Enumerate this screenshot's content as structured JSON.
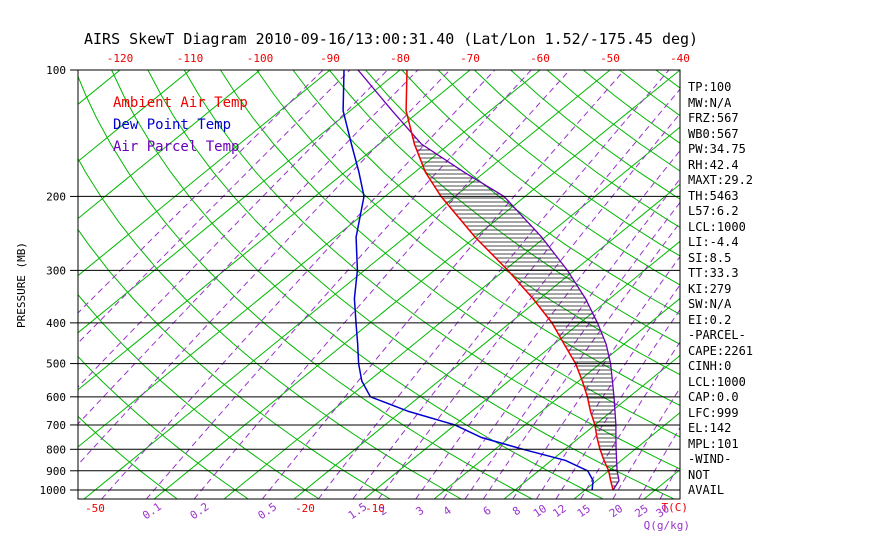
{
  "title": "AIRS SkewT Diagram 2010-09-16/13:00:31.40 (Lat/Lon 1.52/-175.45 deg)",
  "legend": {
    "ambient_label": "Ambient Air Temp",
    "dew_label": "Dew Point Temp",
    "parcel_label": "Air Parcel Temp"
  },
  "colors": {
    "ambient": "#ee0000",
    "dew_point": "#0000cc",
    "parcel": "#6a00b8",
    "grid_green": "#00b800",
    "mixing_ratio": "#9933cc",
    "tick_red": "#ee0000",
    "axis_black": "#000000",
    "hatch": "#111111"
  },
  "side_panel": {
    "lines": [
      "TP:100",
      "MW:N/A",
      "FRZ:567",
      "WB0:567",
      "PW:34.75",
      "RH:42.4",
      "MAXT:29.2",
      "TH:5463",
      "L57:6.2",
      "LCL:1000",
      "LI:-4.4",
      "SI:8.5",
      "TT:33.3",
      "KI:279",
      "SW:N/A",
      "EI:0.2",
      "-PARCEL-",
      "CAPE:2261",
      "CINH:0",
      "LCL:1000",
      "CAP:0.0",
      "LFC:999",
      "EL:142",
      "MPL:101",
      "-WIND-",
      "NOT",
      "AVAIL"
    ]
  },
  "chart_data": {
    "type": "line",
    "diagram": "skew-t-log-p",
    "title": "AIRS SkewT Diagram 2010-09-16/13:00:31.40 (Lat/Lon 1.52/-175.45 deg)",
    "y_axis": {
      "label": "PRESSURE (MB)",
      "scale": "log",
      "ticks": [
        100,
        200,
        300,
        400,
        500,
        600,
        700,
        800,
        900,
        1000
      ],
      "range": [
        100,
        1050
      ]
    },
    "x_axis": {
      "label": "T(C)",
      "skewed": true,
      "top_tick_labels": [
        -120,
        -110,
        -100,
        -90,
        -80,
        -70,
        -60,
        -50,
        -40
      ],
      "bottom_tick_labels": [
        -50,
        -20,
        -10
      ],
      "isotherm_range": [
        -120,
        40
      ],
      "isotherm_step": 10
    },
    "mixing_ratio_axis": {
      "label": "Q(g/kg)",
      "labeled_values": [
        0.1,
        0.2,
        0.5,
        1.5,
        2,
        3,
        4,
        6,
        8,
        10,
        12,
        15,
        20,
        25,
        30
      ],
      "unlabeled_values": [
        0.001,
        0.002,
        0.005,
        0.01,
        0.02,
        0.05,
        1,
        5
      ]
    },
    "dry_adiabats": {
      "theta_start": -40,
      "theta_end": 180,
      "step": 10
    },
    "shaded_region": {
      "between": [
        "ambient_temp_c",
        "parcel_temp_c"
      ],
      "style": "horizontal-hatch",
      "meaning": "CAPE"
    },
    "sounding": {
      "pressure_mb": [
        1000,
        950,
        900,
        850,
        800,
        750,
        700,
        650,
        600,
        550,
        500,
        450,
        400,
        350,
        300,
        250,
        200,
        175,
        150,
        125,
        100
      ],
      "ambient_temp_c": [
        24.0,
        22.0,
        20.0,
        17.5,
        15.0,
        12.5,
        10.0,
        7.0,
        4.0,
        0.5,
        -3.5,
        -8.5,
        -14.0,
        -21.0,
        -29.5,
        -40.0,
        -52.0,
        -58.5,
        -65.0,
        -72.0,
        -79.0
      ],
      "dew_point_c": [
        21.0,
        19.5,
        17.0,
        12.0,
        4.0,
        -4.0,
        -10.0,
        -19.0,
        -27.0,
        -31.0,
        -34.5,
        -38.0,
        -42.0,
        -46.5,
        -51.0,
        -57.0,
        -63.0,
        -68.0,
        -74.0,
        -81.0,
        -88.0
      ],
      "parcel_temp_c": [
        24.0,
        23.2,
        21.2,
        19.3,
        17.3,
        15.2,
        13.0,
        10.5,
        7.8,
        4.8,
        1.5,
        -2.5,
        -7.5,
        -13.5,
        -21.0,
        -30.5,
        -43.0,
        -53.0,
        -64.0,
        -74.0,
        -86.0
      ]
    }
  }
}
